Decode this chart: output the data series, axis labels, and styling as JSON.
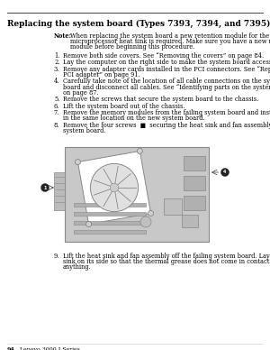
{
  "page_bg": "#ffffff",
  "title": "Replacing the system board (Types 7393, 7394, and 7395)",
  "title_fontsize": 6.5,
  "note_label": "Note:",
  "note_text": "When replacing the system board a new retention module for the\nmicroprocessor heat sink is required. Make sure you have a new retention\nmodule before beginning this procedure.",
  "note_fontsize": 4.8,
  "steps": [
    "Remove both side covers. See “Removing the covers” on page 84.",
    "Lay the computer on the right side to make the system board accessible.",
    "Remove any adapter cards installed in the PCI connectors. See “Replacing a\nPCI adapter” on page 91.",
    "Carefully take note of the location of all cable connections on the system\nboard and disconnect all cables. See “Identifying parts on the system board”\non page 87.",
    "Remove the screws that secure the system board to the chassis.",
    "Lift the system board out of the chassis.",
    "Remove the memory modules from the failing system board and install them\nin the same location on the new system board.",
    "Remove the four screws  ■  securing the heat sink and fan assembly to the\nsystem board."
  ],
  "step9": "Lift the heat sink and fan assembly off the failing system board. Lay the heat\nsink on its side so that the thermal grease does not come in contact with\nanything.",
  "footer_page": "94",
  "footer_text": "Lenovo 3000 J Series",
  "step_fontsize": 4.8,
  "board_color": "#c8c8c8",
  "board_border": "#888888"
}
